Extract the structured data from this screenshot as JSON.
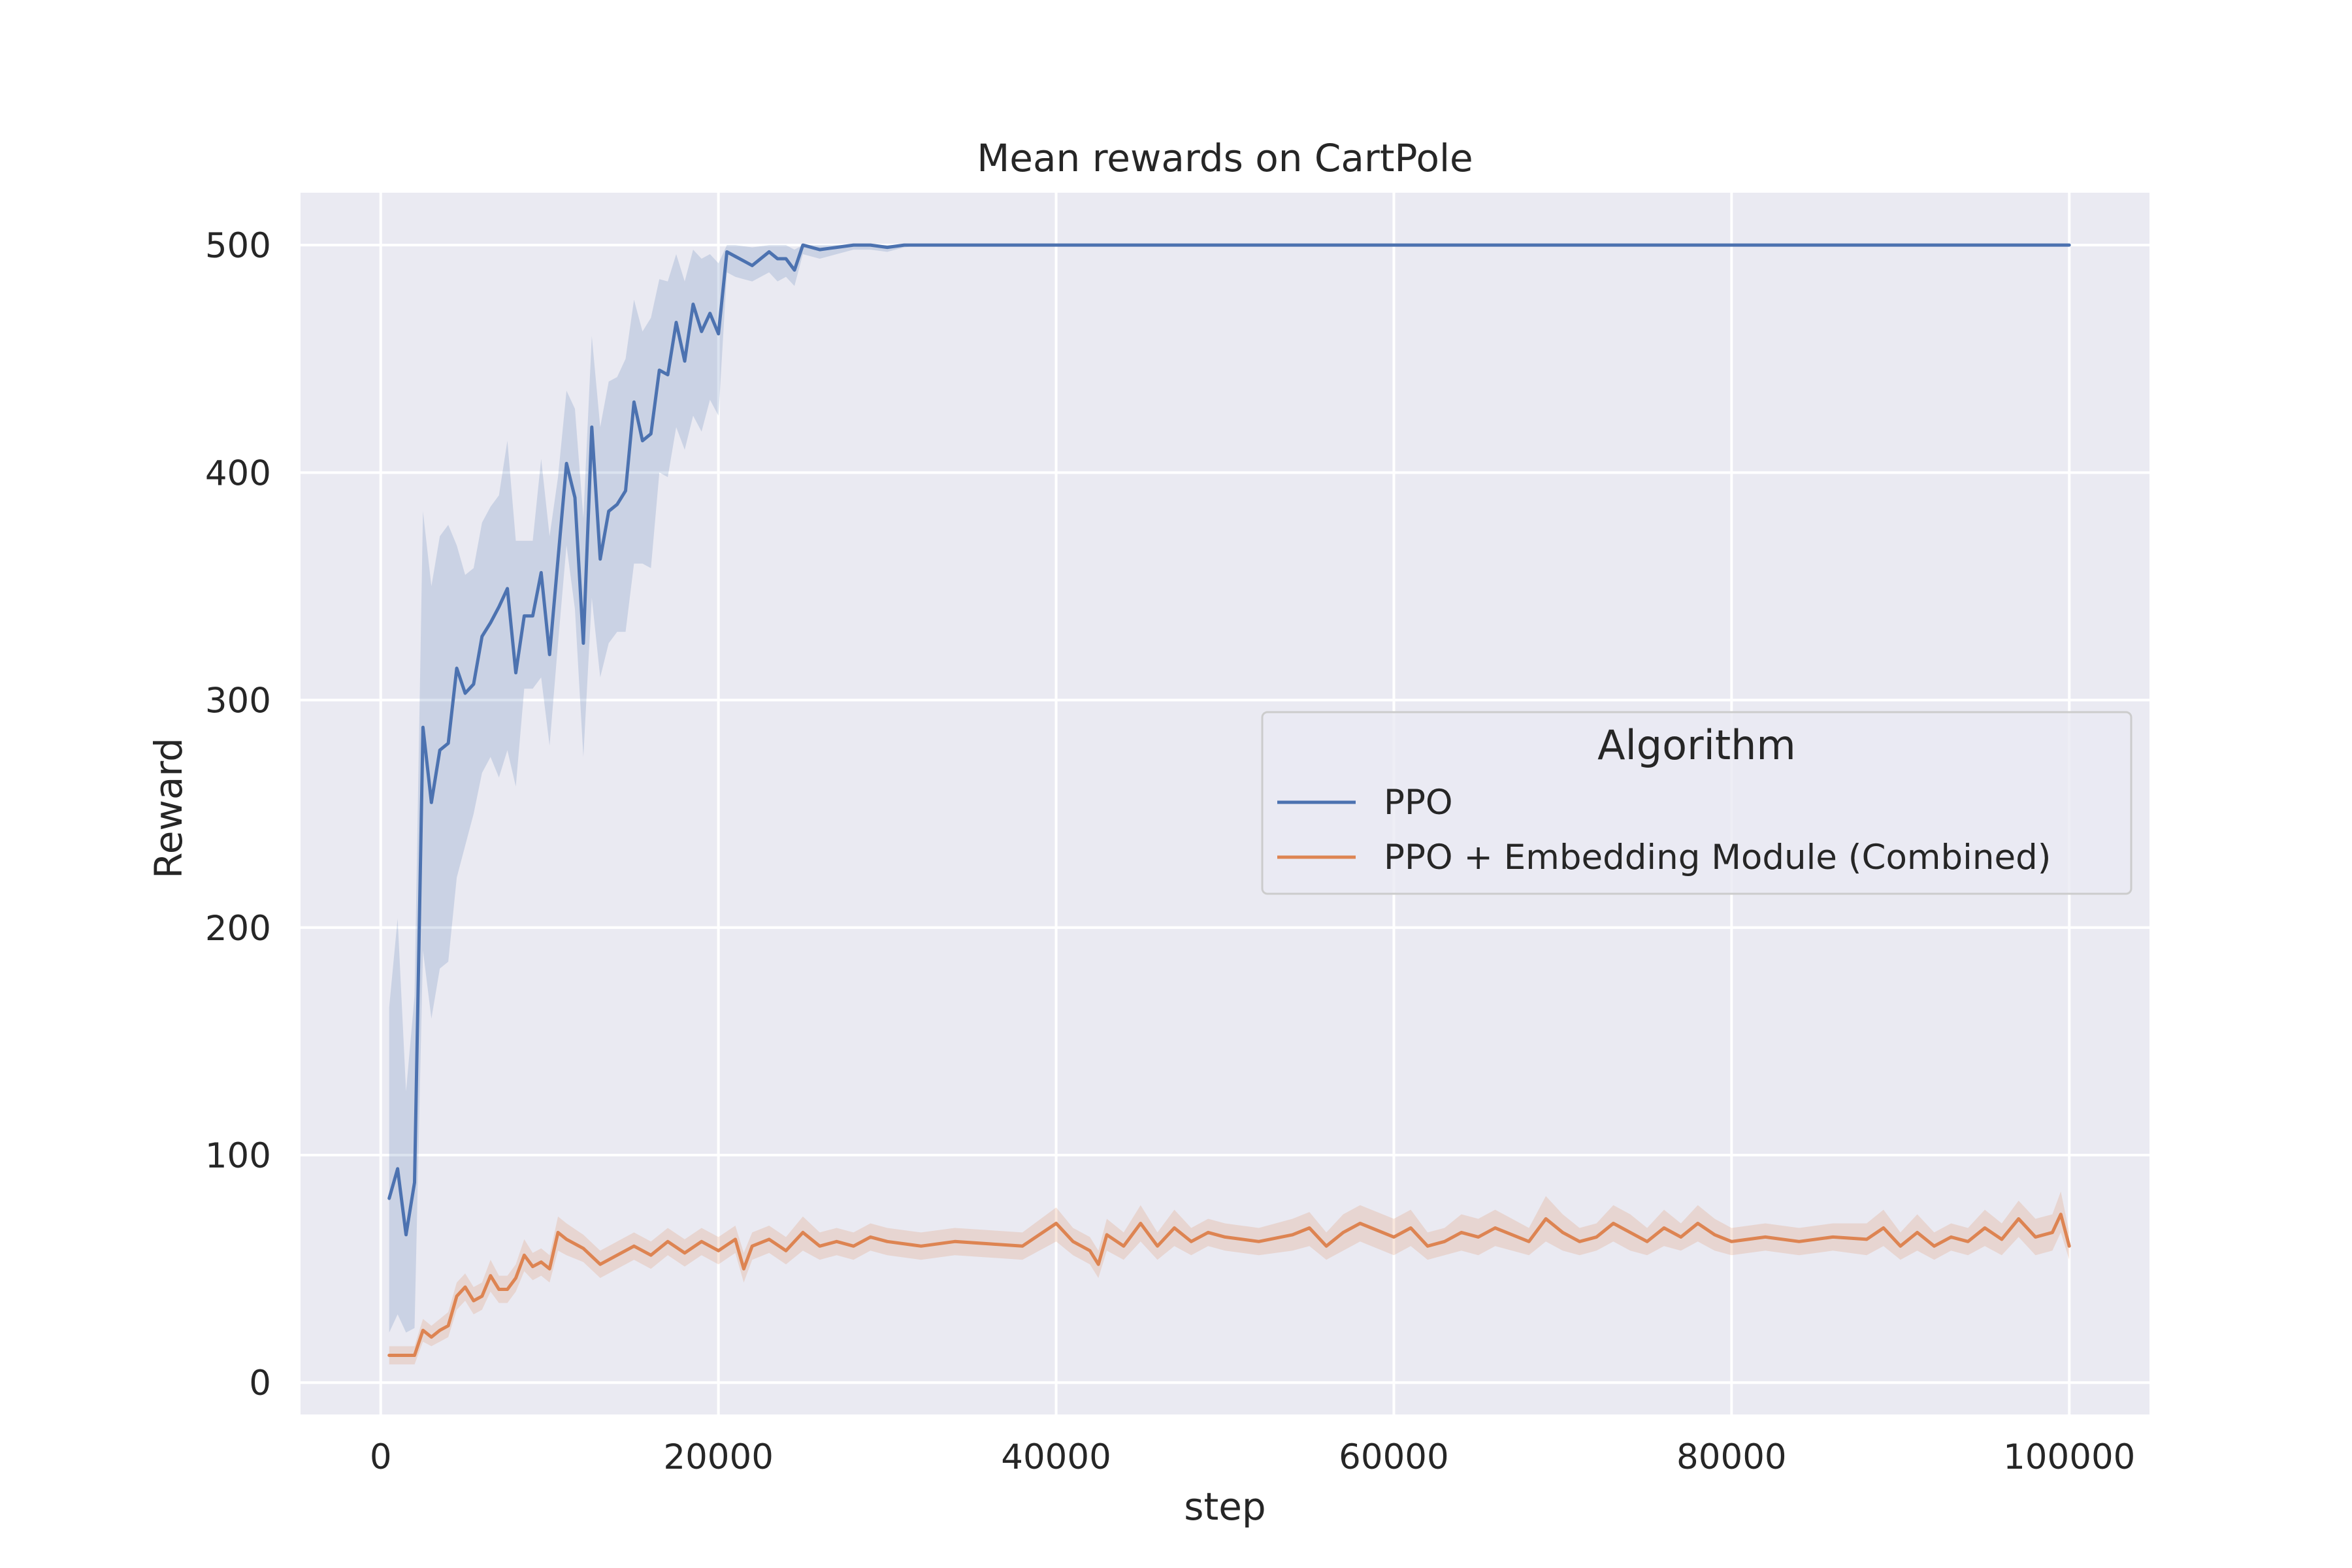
{
  "chart_data": {
    "type": "line",
    "title": "Mean rewards on CartPole",
    "xlabel": "step",
    "ylabel": "Reward",
    "xlim": [
      -4750,
      104750
    ],
    "ylim": [
      -14,
      523
    ],
    "xticks": [
      0,
      20000,
      40000,
      60000,
      80000,
      100000
    ],
    "yticks": [
      0,
      100,
      200,
      300,
      400,
      500
    ],
    "grid": true,
    "legend": {
      "title": "Algorithm",
      "placement": "center-right",
      "entries": [
        "PPO",
        "PPO + Embedding Module (Combined)"
      ]
    },
    "series": [
      {
        "name": "PPO",
        "color": "#4c72b0",
        "band_color": "#4c72b0",
        "x": [
          500,
          1000,
          1500,
          2000,
          2500,
          3000,
          3500,
          4000,
          4500,
          5000,
          5500,
          6000,
          6500,
          7000,
          7500,
          8000,
          8500,
          9000,
          9500,
          10000,
          10500,
          11000,
          11500,
          12000,
          12500,
          13000,
          13500,
          14000,
          14500,
          15000,
          15500,
          16000,
          16500,
          17000,
          17500,
          18000,
          18500,
          19000,
          19500,
          20000,
          20500,
          21000,
          22000,
          23000,
          23500,
          24000,
          24500,
          25000,
          26000,
          27000,
          28000,
          29000,
          30000,
          31000,
          32000,
          40000,
          60000,
          80000,
          100000
        ],
        "y": [
          81,
          94,
          65,
          88,
          288,
          255,
          278,
          281,
          314,
          303,
          307,
          328,
          334,
          341,
          349,
          312,
          337,
          337,
          356,
          320,
          362,
          404,
          389,
          325,
          420,
          362,
          383,
          386,
          392,
          431,
          414,
          417,
          445,
          443,
          466,
          449,
          474,
          462,
          470,
          461,
          497,
          495,
          491,
          497,
          494,
          494,
          489,
          500,
          498,
          499,
          500,
          500,
          499,
          500,
          500,
          500,
          500,
          500,
          500
        ],
        "lower": [
          22,
          30,
          22,
          24,
          190,
          160,
          182,
          185,
          222,
          236,
          250,
          268,
          275,
          266,
          278,
          262,
          305,
          305,
          310,
          280,
          325,
          368,
          340,
          275,
          345,
          310,
          325,
          330,
          330,
          360,
          360,
          358,
          400,
          398,
          420,
          410,
          425,
          418,
          432,
          425,
          488,
          486,
          484,
          488,
          484,
          486,
          482,
          496,
          494,
          496,
          498,
          498,
          497,
          499,
          500,
          500,
          500,
          500,
          500
        ],
        "upper": [
          165,
          204,
          128,
          170,
          383,
          350,
          372,
          377,
          368,
          355,
          358,
          378,
          385,
          390,
          414,
          370,
          370,
          370,
          406,
          372,
          398,
          436,
          428,
          380,
          460,
          420,
          440,
          442,
          450,
          476,
          462,
          468,
          485,
          484,
          496,
          484,
          498,
          494,
          496,
          492,
          500,
          500,
          499,
          500,
          500,
          500,
          498,
          500,
          500,
          500,
          500,
          500,
          500,
          500,
          500,
          500,
          500,
          500,
          500
        ]
      },
      {
        "name": "PPO + Embedding Module (Combined)",
        "color": "#dd8452",
        "band_color": "#dd8452",
        "x": [
          500,
          1000,
          1500,
          2000,
          2500,
          3000,
          3500,
          4000,
          4500,
          5000,
          5500,
          6000,
          6500,
          7000,
          7500,
          8000,
          8500,
          9000,
          9500,
          10000,
          10500,
          11000,
          12000,
          13000,
          14000,
          15000,
          16000,
          17000,
          18000,
          19000,
          20000,
          21000,
          21500,
          22000,
          23000,
          24000,
          25000,
          26000,
          27000,
          28000,
          29000,
          30000,
          32000,
          34000,
          36000,
          38000,
          40000,
          41000,
          42000,
          42500,
          43000,
          44000,
          45000,
          46000,
          47000,
          48000,
          49000,
          50000,
          52000,
          54000,
          55000,
          56000,
          57000,
          58000,
          60000,
          61000,
          62000,
          63000,
          64000,
          65000,
          66000,
          67000,
          68000,
          69000,
          70000,
          71000,
          72000,
          73000,
          74000,
          75000,
          76000,
          77000,
          78000,
          79000,
          80000,
          82000,
          84000,
          86000,
          88000,
          89000,
          90000,
          91000,
          92000,
          93000,
          94000,
          95000,
          96000,
          97000,
          98000,
          99000,
          99500,
          100000
        ],
        "y": [
          12,
          12,
          12,
          12,
          23,
          20,
          23,
          25,
          38,
          42,
          36,
          38,
          47,
          41,
          41,
          46,
          56,
          51,
          53,
          50,
          66,
          63,
          59,
          52,
          56,
          60,
          56,
          62,
          57,
          62,
          58,
          63,
          50,
          60,
          63,
          58,
          66,
          60,
          62,
          60,
          64,
          62,
          60,
          62,
          61,
          60,
          70,
          62,
          58,
          52,
          65,
          60,
          70,
          60,
          68,
          62,
          66,
          64,
          62,
          65,
          68,
          60,
          66,
          70,
          64,
          68,
          60,
          62,
          66,
          64,
          68,
          65,
          62,
          72,
          66,
          62,
          64,
          70,
          66,
          62,
          68,
          64,
          70,
          65,
          62,
          64,
          62,
          64,
          63,
          68,
          60,
          66,
          60,
          64,
          62,
          68,
          63,
          72,
          64,
          66,
          74,
          60
        ],
        "lower": [
          8,
          8,
          8,
          8,
          18,
          16,
          18,
          20,
          32,
          36,
          30,
          32,
          40,
          35,
          35,
          40,
          49,
          45,
          47,
          44,
          58,
          56,
          53,
          46,
          50,
          54,
          50,
          56,
          51,
          56,
          52,
          57,
          44,
          54,
          57,
          52,
          58,
          54,
          56,
          54,
          58,
          56,
          54,
          56,
          55,
          54,
          62,
          56,
          52,
          46,
          58,
          54,
          62,
          54,
          60,
          56,
          60,
          58,
          56,
          58,
          60,
          54,
          58,
          62,
          56,
          60,
          54,
          56,
          58,
          56,
          60,
          58,
          56,
          62,
          58,
          56,
          58,
          62,
          58,
          56,
          60,
          58,
          62,
          58,
          56,
          58,
          56,
          58,
          56,
          60,
          54,
          58,
          54,
          58,
          56,
          60,
          56,
          64,
          56,
          58,
          66,
          54
        ],
        "upper": [
          16,
          16,
          16,
          16,
          28,
          25,
          28,
          31,
          44,
          48,
          42,
          44,
          54,
          47,
          47,
          52,
          63,
          57,
          59,
          56,
          73,
          70,
          65,
          58,
          62,
          66,
          62,
          68,
          63,
          68,
          64,
          69,
          57,
          66,
          69,
          64,
          73,
          66,
          68,
          66,
          70,
          68,
          66,
          68,
          67,
          66,
          77,
          68,
          64,
          58,
          72,
          66,
          78,
          66,
          76,
          68,
          72,
          70,
          68,
          72,
          75,
          66,
          74,
          78,
          72,
          76,
          66,
          68,
          74,
          72,
          76,
          72,
          68,
          82,
          74,
          68,
          70,
          78,
          74,
          68,
          76,
          70,
          78,
          72,
          68,
          70,
          68,
          70,
          70,
          76,
          66,
          74,
          66,
          70,
          68,
          76,
          70,
          80,
          72,
          74,
          84,
          66
        ]
      }
    ]
  }
}
